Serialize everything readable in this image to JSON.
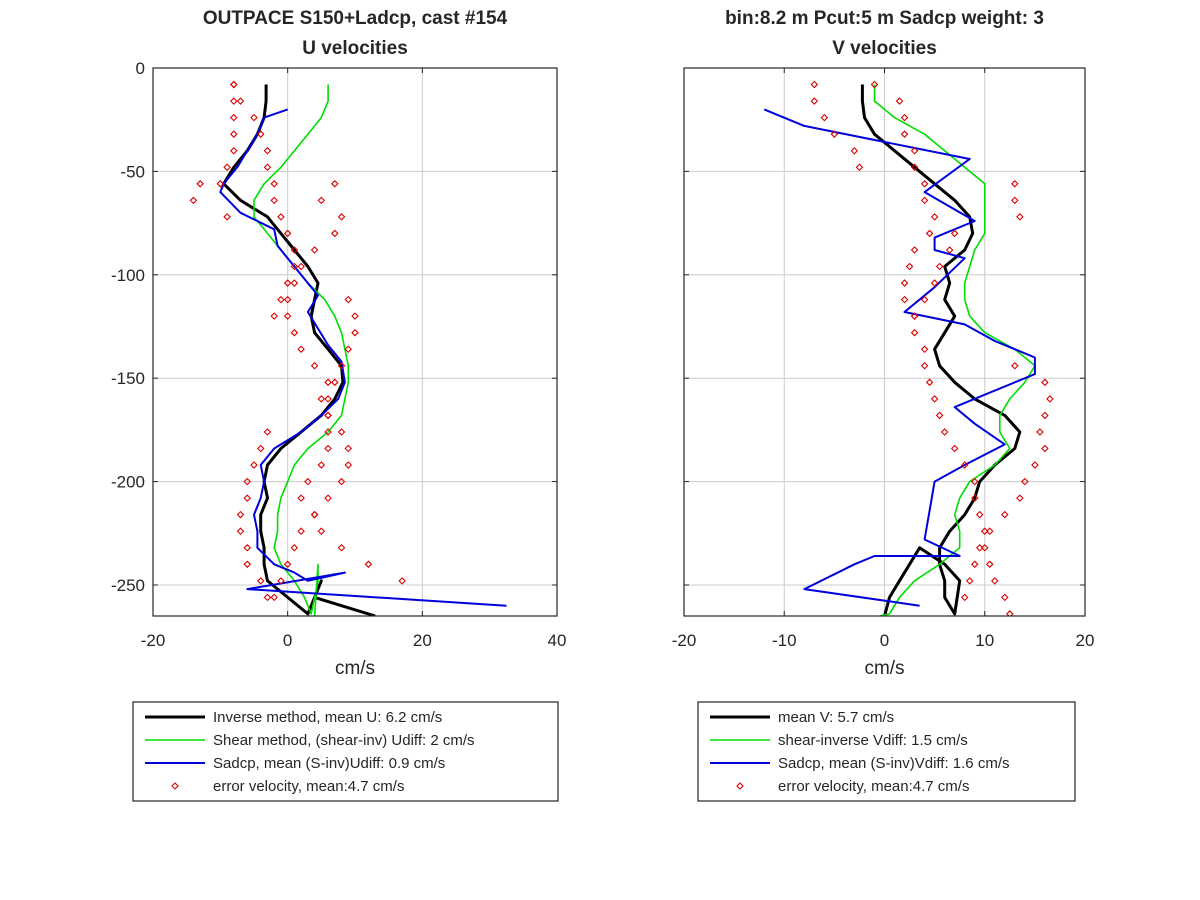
{
  "chart_data": [
    {
      "type": "line",
      "title": "OUTPACE S150+Ladcp, cast #154",
      "subtitle": "U velocities",
      "xlabel": "cm/s",
      "ylabel": "",
      "xlim": [
        -20,
        40
      ],
      "ylim": [
        -265,
        0
      ],
      "xticks": [
        "-20",
        "0",
        "20",
        "40"
      ],
      "yticks": [
        "0",
        "-50",
        "-100",
        "-150",
        "-200",
        "-250"
      ],
      "grid": true,
      "legend_position": "below",
      "series": [
        {
          "name": "Inverse method, mean U:  6.2 cm/s",
          "color": "#000000",
          "width": 3,
          "style": "line",
          "x": [
            -3.2,
            -3.2,
            -3.5,
            -4.5,
            -6,
            -8,
            -9.5,
            -7,
            -3,
            -1,
            1,
            3,
            4.5,
            4,
            3.5,
            4,
            6,
            8,
            8.2,
            7,
            5,
            2,
            -1,
            -3,
            -3.5,
            -3,
            -4,
            -4,
            -3.5,
            -3.5,
            -3,
            0,
            3,
            5,
            5,
            4,
            4,
            13
          ],
          "y": [
            -8,
            -16,
            -24,
            -32,
            -40,
            -48,
            -56,
            -64,
            -72,
            -80,
            -88,
            -96,
            -104,
            -112,
            -120,
            -128,
            -136,
            -144,
            -152,
            -160,
            -168,
            -176,
            -184,
            -192,
            -200,
            -208,
            -216,
            -224,
            -232,
            -240,
            -248,
            -256,
            -264,
            -248,
            -248,
            -256,
            -256,
            -265
          ]
        },
        {
          "name": "Shear method, (shear-inv)  Udiff:  2 cm/s",
          "color": "#00dd00",
          "width": 1.6,
          "style": "line",
          "x": [
            6,
            6,
            5,
            3,
            1,
            -1,
            -3.5,
            -5,
            -5,
            -3,
            -1,
            1,
            3,
            5.5,
            7,
            8,
            8.5,
            9,
            9,
            8.5,
            8,
            6,
            3,
            1,
            0,
            -1,
            -1.5,
            -1.5,
            -2,
            -1,
            1,
            2.5,
            3.5,
            4,
            4.5,
            4.5,
            4
          ],
          "y": [
            -8,
            -16,
            -24,
            -32,
            -40,
            -48,
            -56,
            -64,
            -72,
            -80,
            -88,
            -96,
            -104,
            -112,
            -120,
            -128,
            -136,
            -144,
            -152,
            -160,
            -168,
            -176,
            -184,
            -192,
            -200,
            -208,
            -216,
            -224,
            -232,
            -240,
            -248,
            -256,
            -264,
            -256,
            -248,
            -240,
            -265
          ]
        },
        {
          "name": "Sadcp, mean (S-inv)Udiff: 0.9 cm/s",
          "color": "#0000dd",
          "width": 2,
          "style": "line",
          "x": [
            0,
            -3.5,
            -4.5,
            -6,
            -7.5,
            -9.5,
            -10,
            -7,
            -2,
            -1.5,
            0.5,
            3,
            4.5,
            3,
            4.5,
            6,
            8,
            8.5,
            7.5,
            5,
            2,
            -2,
            -4,
            -3.5,
            -4,
            -5,
            -4.5,
            -4.5,
            -2,
            1,
            3,
            8.5,
            -6,
            32.5
          ],
          "y": [
            -20,
            -24,
            -32,
            -40,
            -48,
            -56,
            -60,
            -70,
            -78,
            -86,
            -94,
            -104,
            -110,
            -118,
            -126,
            -134,
            -142,
            -152,
            -160,
            -168,
            -176,
            -184,
            -192,
            -200,
            -208,
            -216,
            -224,
            -232,
            -240,
            -244,
            -248,
            -244,
            -252,
            -260
          ]
        },
        {
          "name": "error velocity, mean:4.7 cm/s",
          "color": "#dd0000",
          "style": "markers",
          "marker": "diamond",
          "x": [
            -8,
            -8,
            -8,
            -8,
            -8,
            -9,
            -10,
            -13,
            -14,
            -9,
            -8,
            -7,
            -5,
            -4,
            -3,
            -3,
            -2,
            -2,
            -1,
            0,
            1,
            1,
            0,
            0,
            -2,
            -3,
            -4,
            -5,
            -6,
            -6,
            -7,
            -7,
            -6,
            -6,
            -4,
            -3,
            -2,
            -1,
            0,
            1,
            2,
            4,
            6,
            8,
            9,
            9,
            8,
            6,
            5,
            6,
            4,
            2,
            1,
            0,
            -1,
            1,
            2,
            4,
            7,
            8,
            5,
            7,
            9,
            10,
            10,
            9,
            8,
            7,
            6,
            6,
            6,
            6,
            5,
            3,
            2,
            4,
            5,
            8,
            12,
            17
          ],
          "y": [
            -8,
            -16,
            -24,
            -32,
            -40,
            -48,
            -56,
            -56,
            -64,
            -72,
            -8,
            -16,
            -24,
            -32,
            -40,
            -48,
            -56,
            -64,
            -72,
            -80,
            -88,
            -96,
            -104,
            -112,
            -120,
            -176,
            -184,
            -192,
            -200,
            -208,
            -216,
            -224,
            -232,
            -240,
            -248,
            -256,
            -256,
            -248,
            -240,
            -232,
            -224,
            -216,
            -208,
            -200,
            -192,
            -184,
            -176,
            -168,
            -160,
            -152,
            -144,
            -136,
            -128,
            -120,
            -112,
            -104,
            -96,
            -88,
            -80,
            -72,
            -64,
            -56,
            -112,
            -120,
            -128,
            -136,
            -144,
            -152,
            -160,
            -168,
            -176,
            -184,
            -192,
            -200,
            -208,
            -216,
            -224,
            -232,
            -240,
            -248
          ]
        }
      ]
    },
    {
      "type": "line",
      "title": "bin:8.2 m  Pcut:5 m  Sadcp weight: 3",
      "subtitle": "V velocities",
      "xlabel": "cm/s",
      "ylabel": "",
      "xlim": [
        -20,
        20
      ],
      "ylim": [
        -265,
        0
      ],
      "xticks": [
        "-20",
        "-10",
        "0",
        "10",
        "20"
      ],
      "yticks": [],
      "grid": true,
      "legend_position": "below",
      "series": [
        {
          "name": "mean V:  5.7 cm/s",
          "color": "#000000",
          "width": 3,
          "style": "line",
          "x": [
            -2.2,
            -2.2,
            -2,
            -1,
            1,
            3,
            5,
            7,
            8.5,
            8.8,
            8,
            6,
            6.5,
            6,
            7,
            6,
            5,
            5.5,
            7,
            9,
            12,
            13.5,
            13,
            11,
            9.5,
            9,
            8,
            6.5,
            5.5,
            5.5,
            6,
            6,
            7,
            7.5,
            6,
            3.5,
            1.5,
            0.5,
            0
          ],
          "y": [
            -8,
            -16,
            -24,
            -32,
            -40,
            -48,
            -56,
            -64,
            -72,
            -80,
            -88,
            -96,
            -104,
            -112,
            -120,
            -128,
            -136,
            -144,
            -152,
            -160,
            -168,
            -176,
            -184,
            -192,
            -200,
            -208,
            -216,
            -224,
            -232,
            -240,
            -248,
            -256,
            -264,
            -248,
            -240,
            -232,
            -248,
            -256,
            -265
          ]
        },
        {
          "name": "shear-inverse Vdiff:  1.5 cm/s",
          "color": "#00dd00",
          "width": 1.6,
          "style": "line",
          "x": [
            -1,
            -1,
            1,
            4,
            6,
            8,
            10,
            10,
            10,
            10,
            9,
            8.5,
            8,
            8,
            8.5,
            10,
            13,
            15,
            14,
            12.5,
            11.5,
            11.5,
            12.5,
            11,
            8.5,
            7.5,
            7,
            7.5,
            7.5,
            5.5,
            3,
            1.5,
            0.5,
            -0.5
          ],
          "y": [
            -8,
            -16,
            -24,
            -32,
            -40,
            -48,
            -56,
            -64,
            -72,
            -80,
            -88,
            -96,
            -104,
            -112,
            -120,
            -128,
            -136,
            -144,
            -152,
            -160,
            -168,
            -176,
            -184,
            -192,
            -200,
            -208,
            -216,
            -224,
            -232,
            -240,
            -248,
            -256,
            -264,
            -265
          ]
        },
        {
          "name": "Sadcp, mean (S-inv)Vdiff: 1.6 cm/s",
          "color": "#0000dd",
          "width": 2,
          "style": "line",
          "x": [
            -12,
            -8,
            8.5,
            4,
            9,
            5,
            5,
            8,
            5,
            2,
            8,
            11,
            15,
            15,
            7,
            9,
            12,
            8,
            5,
            4,
            7.5,
            -1,
            -3,
            -8,
            3.5
          ],
          "y": [
            -20,
            -28,
            -44,
            -60,
            -74,
            -82,
            -88,
            -92,
            -106,
            -118,
            -124,
            -132,
            -140,
            -148,
            -164,
            -172,
            -182,
            -192,
            -200,
            -228,
            -236,
            -236,
            -240,
            -252,
            -260
          ]
        },
        {
          "name": "error velocity, mean:4.7 cm/s",
          "color": "#dd0000",
          "style": "markers",
          "marker": "diamond",
          "x": [
            -7,
            -7,
            -6,
            -5,
            -3,
            -2.5,
            -1,
            1.5,
            2,
            2,
            3,
            3,
            4,
            4,
            5,
            4.5,
            3,
            2.5,
            2,
            2,
            3,
            3,
            4,
            4,
            4.5,
            5,
            5.5,
            6,
            7,
            8,
            9,
            9,
            9.5,
            10,
            10,
            10.5,
            11,
            12,
            12.5,
            13,
            13,
            13.5,
            13,
            16,
            16.5,
            16,
            15.5,
            16,
            15,
            14,
            13.5,
            12,
            10.5,
            9.5,
            9,
            8.5,
            8,
            7,
            6.5,
            5.5,
            5,
            4,
            3
          ],
          "y": [
            -8,
            -16,
            -24,
            -32,
            -40,
            -48,
            -8,
            -16,
            -24,
            -32,
            -40,
            -48,
            -56,
            -64,
            -72,
            -80,
            -88,
            -96,
            -104,
            -112,
            -120,
            -128,
            -136,
            -144,
            -152,
            -160,
            -168,
            -176,
            -184,
            -192,
            -200,
            -208,
            -216,
            -224,
            -232,
            -240,
            -248,
            -256,
            -264,
            -56,
            -64,
            -72,
            -144,
            -152,
            -160,
            -168,
            -176,
            -184,
            -192,
            -200,
            -208,
            -216,
            -224,
            -232,
            -240,
            -248,
            -256,
            -80,
            -88,
            -96,
            -104,
            -112,
            -120
          ]
        }
      ]
    }
  ],
  "colors": {
    "inverse": "#000000",
    "shear": "#00dd00",
    "sadcp": "#0000dd",
    "error": "#dd0000",
    "grid": "#cccccc",
    "axes": "#262626"
  }
}
